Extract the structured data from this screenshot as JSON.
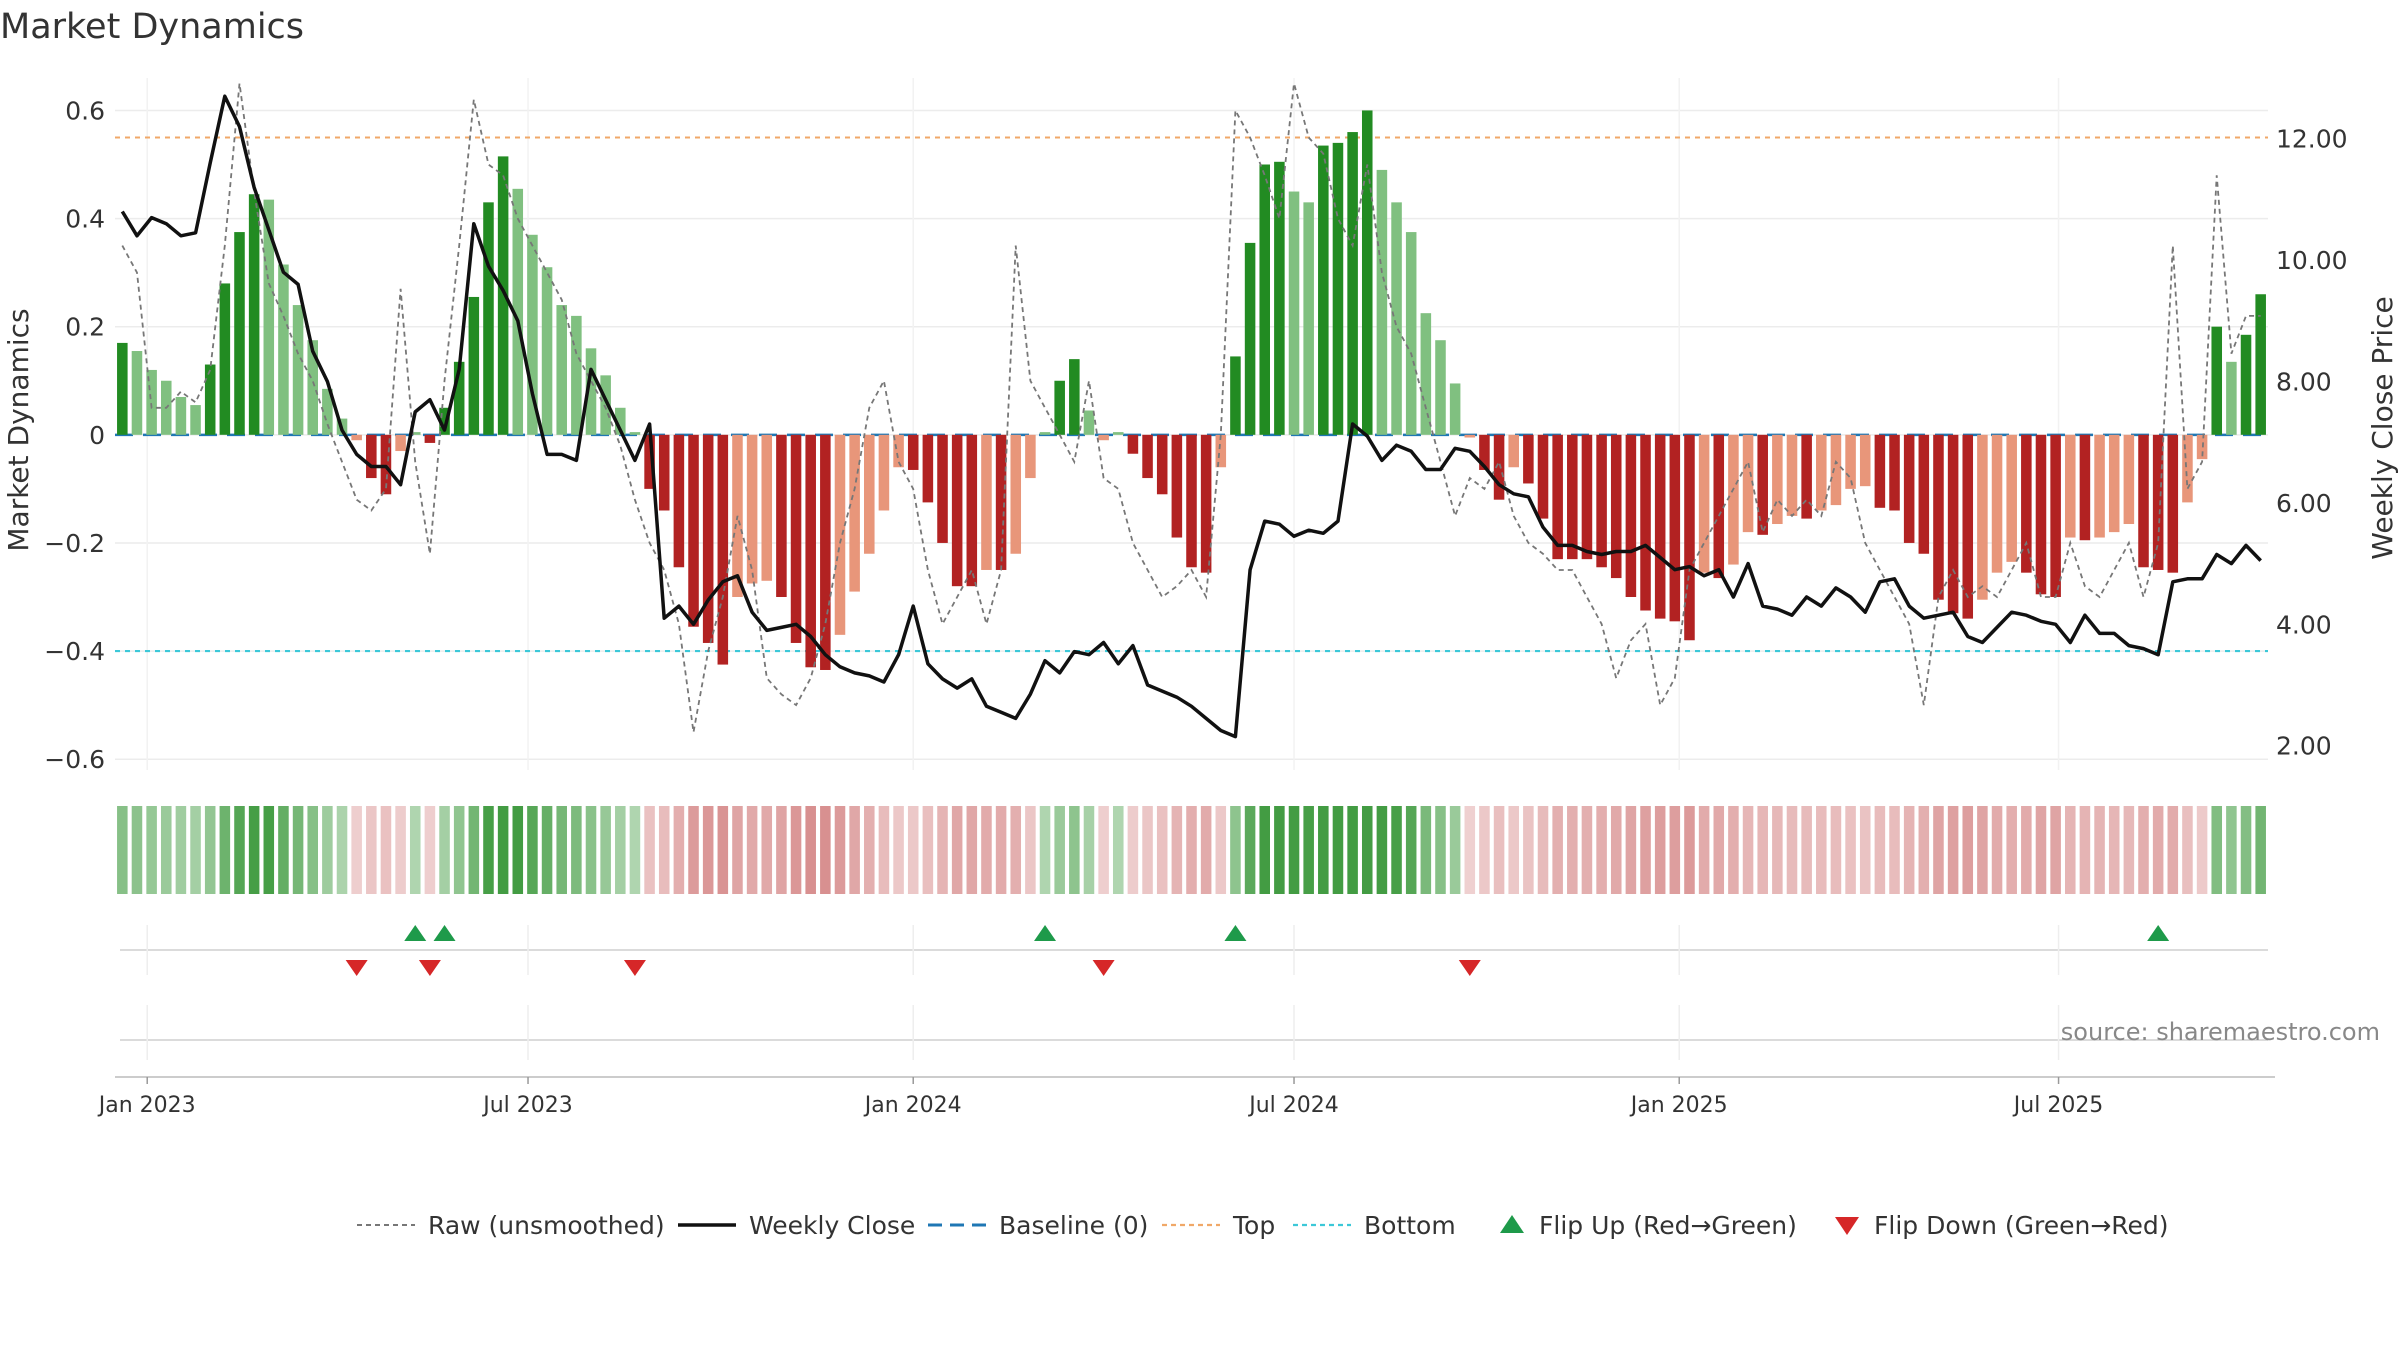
{
  "chart_data": {
    "type": "bar",
    "title": "Market Dynamics",
    "ylabel": "Market Dynamics",
    "y2label": "Weekly Close Price",
    "ylim": [
      -0.62,
      0.66
    ],
    "y2lim": [
      1.6,
      13.0
    ],
    "yticks": [
      {
        "v": 0.6,
        "label": "0.6"
      },
      {
        "v": 0.4,
        "label": "0.4"
      },
      {
        "v": 0.2,
        "label": "0.2"
      },
      {
        "v": 0,
        "label": "0"
      },
      {
        "v": -0.2,
        "label": "−0.2"
      },
      {
        "v": -0.4,
        "label": "−0.4"
      },
      {
        "v": -0.6,
        "label": "−0.6"
      }
    ],
    "y2ticks": [
      {
        "v": 12,
        "label": "12.00"
      },
      {
        "v": 10,
        "label": "10.00"
      },
      {
        "v": 8,
        "label": "8.00"
      },
      {
        "v": 6,
        "label": "6.00"
      },
      {
        "v": 4,
        "label": "4.00"
      },
      {
        "v": 2,
        "label": "2.00"
      }
    ],
    "xticks": [
      {
        "i": 2.2,
        "label": "Jan 2023"
      },
      {
        "i": 28.2,
        "label": "Jul 2023"
      },
      {
        "i": 54.5,
        "label": "Jan 2024"
      },
      {
        "i": 80.5,
        "label": "Jul 2024"
      },
      {
        "i": 106.8,
        "label": "Jan 2025"
      },
      {
        "i": 132.7,
        "label": "Jul 2025"
      }
    ],
    "top_level": 0.55,
    "bottom_level": -0.4,
    "values": [
      0.17,
      0.155,
      0.12,
      0.1,
      0.07,
      0.055,
      0.13,
      0.28,
      0.375,
      0.445,
      0.435,
      0.315,
      0.24,
      0.175,
      0.085,
      0.03,
      -0.01,
      -0.08,
      -0.11,
      -0.03,
      0.005,
      -0.015,
      0.05,
      0.135,
      0.255,
      0.43,
      0.515,
      0.455,
      0.37,
      0.31,
      0.24,
      0.22,
      0.16,
      0.11,
      0.05,
      0.005,
      -0.1,
      -0.14,
      -0.245,
      -0.355,
      -0.385,
      -0.425,
      -0.3,
      -0.275,
      -0.27,
      -0.3,
      -0.385,
      -0.43,
      -0.435,
      -0.37,
      -0.29,
      -0.22,
      -0.14,
      -0.06,
      -0.065,
      -0.125,
      -0.2,
      -0.28,
      -0.28,
      -0.25,
      -0.25,
      -0.22,
      -0.08,
      0.005,
      0.1,
      0.14,
      0.045,
      -0.01,
      0.005,
      -0.035,
      -0.08,
      -0.11,
      -0.19,
      -0.245,
      -0.255,
      -0.06,
      0.145,
      0.355,
      0.5,
      0.505,
      0.45,
      0.43,
      0.535,
      0.54,
      0.56,
      0.6,
      0.49,
      0.43,
      0.375,
      0.225,
      0.175,
      0.095,
      -0.005,
      -0.065,
      -0.12,
      -0.06,
      -0.09,
      -0.155,
      -0.23,
      -0.23,
      -0.23,
      -0.245,
      -0.265,
      -0.3,
      -0.325,
      -0.34,
      -0.345,
      -0.38,
      -0.255,
      -0.265,
      -0.24,
      -0.18,
      -0.185,
      -0.165,
      -0.15,
      -0.155,
      -0.14,
      -0.13,
      -0.1,
      -0.095,
      -0.135,
      -0.14,
      -0.2,
      -0.22,
      -0.305,
      -0.33,
      -0.34,
      -0.305,
      -0.255,
      -0.235,
      -0.255,
      -0.295,
      -0.3,
      -0.19,
      -0.195,
      -0.19,
      -0.18,
      -0.165,
      -0.245,
      -0.25,
      -0.255,
      -0.125,
      -0.045,
      0.2,
      0.135,
      0.185,
      0.26
    ],
    "series": [
      {
        "name": "Raw (unsmoothed)",
        "values": [
          0.35,
          0.3,
          0.05,
          0.05,
          0.08,
          0.06,
          0.12,
          0.35,
          0.65,
          0.45,
          0.28,
          0.22,
          0.15,
          0.1,
          0.02,
          -0.05,
          -0.12,
          -0.14,
          -0.1,
          0.27,
          -0.05,
          -0.22,
          0.1,
          0.35,
          0.62,
          0.5,
          0.48,
          0.4,
          0.35,
          0.3,
          0.25,
          0.15,
          0.1,
          0.05,
          -0.02,
          -0.12,
          -0.2,
          -0.25,
          -0.35,
          -0.55,
          -0.4,
          -0.3,
          -0.15,
          -0.25,
          -0.45,
          -0.48,
          -0.5,
          -0.45,
          -0.35,
          -0.2,
          -0.1,
          0.05,
          0.1,
          -0.05,
          -0.1,
          -0.25,
          -0.35,
          -0.3,
          -0.25,
          -0.35,
          -0.25,
          0.35,
          0.1,
          0.05,
          0.0,
          -0.05,
          0.1,
          -0.08,
          -0.1,
          -0.2,
          -0.25,
          -0.3,
          -0.28,
          -0.25,
          -0.3,
          0.0,
          0.6,
          0.55,
          0.48,
          0.4,
          0.65,
          0.55,
          0.52,
          0.4,
          0.35,
          0.5,
          0.3,
          0.2,
          0.15,
          0.05,
          -0.05,
          -0.15,
          -0.08,
          -0.1,
          -0.05,
          -0.15,
          -0.2,
          -0.22,
          -0.25,
          -0.25,
          -0.3,
          -0.35,
          -0.45,
          -0.38,
          -0.35,
          -0.5,
          -0.45,
          -0.25,
          -0.2,
          -0.15,
          -0.1,
          -0.05,
          -0.18,
          -0.12,
          -0.15,
          -0.12,
          -0.15,
          -0.05,
          -0.08,
          -0.2,
          -0.25,
          -0.3,
          -0.35,
          -0.5,
          -0.3,
          -0.25,
          -0.3,
          -0.28,
          -0.3,
          -0.25,
          -0.2,
          -0.3,
          -0.3,
          -0.2,
          -0.28,
          -0.3,
          -0.25,
          -0.2,
          -0.3,
          -0.2,
          0.35,
          -0.1,
          -0.05,
          0.48,
          0.15,
          0.22,
          0.22
        ]
      },
      {
        "name": "Weekly Close",
        "values": [
          10.8,
          10.4,
          10.7,
          10.6,
          10.4,
          10.45,
          11.6,
          12.7,
          12.2,
          11.2,
          10.5,
          9.8,
          9.6,
          8.5,
          8.0,
          7.2,
          6.8,
          6.6,
          6.6,
          6.3,
          7.5,
          7.7,
          7.2,
          8.2,
          10.6,
          9.9,
          9.5,
          9.0,
          7.8,
          6.8,
          6.8,
          6.7,
          8.2,
          7.7,
          7.2,
          6.7,
          7.3,
          4.1,
          4.3,
          4.0,
          4.4,
          4.7,
          4.8,
          4.2,
          3.9,
          3.95,
          4.0,
          3.8,
          3.5,
          3.3,
          3.2,
          3.15,
          3.05,
          3.5,
          4.3,
          3.35,
          3.1,
          2.95,
          3.1,
          2.65,
          2.55,
          2.45,
          2.85,
          3.4,
          3.2,
          3.55,
          3.5,
          3.7,
          3.35,
          3.65,
          3.0,
          2.9,
          2.8,
          2.65,
          2.45,
          2.25,
          2.15,
          4.9,
          5.7,
          5.65,
          5.45,
          5.55,
          5.5,
          5.7,
          7.3,
          7.1,
          6.7,
          6.95,
          6.85,
          6.55,
          6.55,
          6.9,
          6.85,
          6.6,
          6.3,
          6.15,
          6.1,
          5.6,
          5.3,
          5.3,
          5.2,
          5.15,
          5.2,
          5.2,
          5.3,
          5.1,
          4.9,
          4.95,
          4.8,
          4.9,
          4.45,
          5.0,
          4.3,
          4.25,
          4.15,
          4.45,
          4.3,
          4.6,
          4.45,
          4.2,
          4.7,
          4.75,
          4.3,
          4.1,
          4.15,
          4.2,
          3.8,
          3.7,
          3.95,
          4.2,
          4.15,
          4.05,
          4.0,
          3.7,
          4.15,
          3.85,
          3.85,
          3.65,
          3.6,
          3.5,
          4.7,
          4.75,
          4.75,
          5.15,
          5.0,
          5.3,
          5.05
        ]
      },
      {
        "name": "Baseline (0)",
        "values": [
          0
        ]
      },
      {
        "name": "Top",
        "values": [
          0.55
        ]
      },
      {
        "name": "Bottom",
        "values": [
          -0.4
        ]
      }
    ],
    "flip_up": [
      {
        "i": 20,
        "row": 1
      },
      {
        "i": 22,
        "row": 1
      },
      {
        "i": 63,
        "row": 1
      },
      {
        "i": 76,
        "row": 1
      },
      {
        "i": 139,
        "row": 1
      }
    ],
    "flip_down": [
      {
        "i": 16,
        "row": 2
      },
      {
        "i": 21,
        "row": 2
      },
      {
        "i": 35,
        "row": 2
      },
      {
        "i": 67,
        "row": 2
      },
      {
        "i": 92,
        "row": 2
      }
    ],
    "legend": [
      {
        "label": "Raw (unsmoothed)",
        "kind": "dash-gray"
      },
      {
        "label": "Weekly Close",
        "kind": "line-black"
      },
      {
        "label": "Baseline (0)",
        "kind": "dash-blue"
      },
      {
        "label": "Top",
        "kind": "dash-orange"
      },
      {
        "label": "Bottom",
        "kind": "dash-cyan"
      },
      {
        "label": "Flip Up (Red→Green)",
        "kind": "tri-up"
      },
      {
        "label": "Flip Down (Green→Red)",
        "kind": "tri-down"
      }
    ],
    "colors": {
      "strong_green": "#228b22",
      "light_green": "#80c080",
      "strong_red": "#b22222",
      "light_red": "#e8967a",
      "raw": "#777777",
      "close": "#111111",
      "baseline": "#1f77b4",
      "top": "#f0a868",
      "bottom": "#3cc8d8",
      "flip_up": "#1e9a4a",
      "flip_down": "#d62728"
    },
    "source": "source: sharemaestro.com"
  }
}
